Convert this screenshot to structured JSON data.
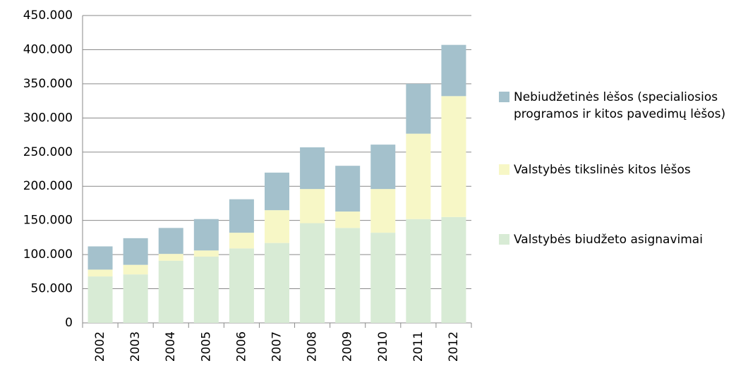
{
  "chart_data": {
    "type": "stacked_bar",
    "categories": [
      "2002",
      "2003",
      "2004",
      "2005",
      "2006",
      "2007",
      "2008",
      "2009",
      "2010",
      "2011",
      "2012"
    ],
    "series": [
      {
        "name": "Valstybės biudžeto asignavimai",
        "color": "#d8ebd5",
        "values": [
          68000,
          71000,
          91000,
          97000,
          109000,
          117000,
          146000,
          139000,
          132000,
          152000,
          155000
        ]
      },
      {
        "name": "Valstybės tikslinės kitos lėšos",
        "color": "#f7f7c6",
        "values": [
          10000,
          14000,
          10000,
          9000,
          23000,
          48000,
          50000,
          24000,
          64000,
          125000,
          177000
        ]
      },
      {
        "name": "Nebiudžetinės lėšos (specialiosios programos ir kitos pavedimų lėšos)",
        "color": "#a4c1cc",
        "values": [
          34000,
          39000,
          38000,
          46000,
          49000,
          55000,
          61000,
          67000,
          65000,
          73000,
          75000
        ]
      }
    ],
    "ylim": [
      0,
      450000
    ],
    "yticks": [
      0,
      {
        "value": 50000,
        "label": "50.000"
      },
      {
        "value": 100000,
        "label": "100.000"
      },
      {
        "value": 150000,
        "label": "150.000"
      },
      {
        "value": 200000,
        "label": "200.000"
      },
      {
        "value": 250000,
        "label": "250.000"
      },
      {
        "value": 300000,
        "label": "300.000"
      },
      {
        "value": 350000,
        "label": "350.000"
      },
      {
        "value": 400000,
        "label": "400.000"
      },
      {
        "value": 450000,
        "label": "450.000"
      }
    ],
    "grid": true,
    "legend": "right"
  }
}
